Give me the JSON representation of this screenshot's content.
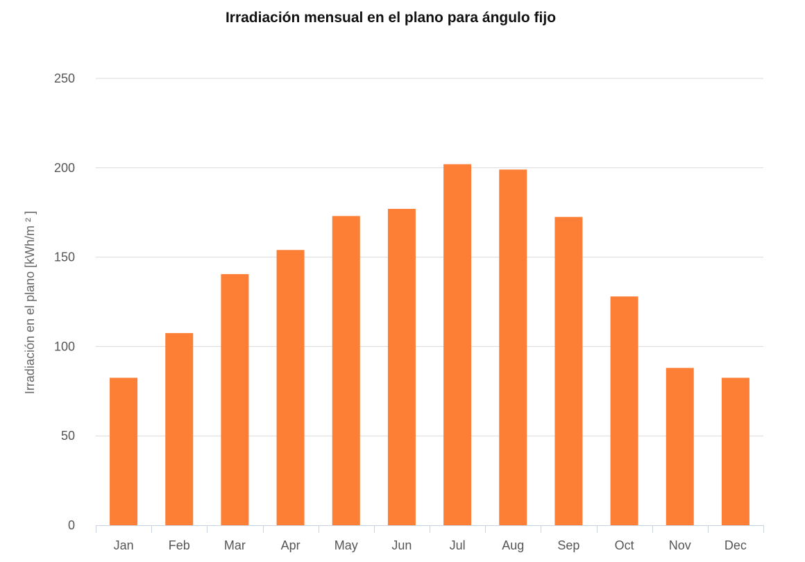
{
  "chart_data": {
    "type": "bar",
    "title": "Irradiación mensual en el plano para ángulo fijo",
    "xlabel": "",
    "ylabel": "Irradiación en el plano [kWh/m ² ]",
    "categories": [
      "Jan",
      "Feb",
      "Mar",
      "Apr",
      "May",
      "Jun",
      "Jul",
      "Aug",
      "Sep",
      "Oct",
      "Nov",
      "Dec"
    ],
    "values": [
      82.5,
      107.5,
      140.5,
      154,
      173,
      177,
      202,
      199,
      172.5,
      128,
      88,
      82.5
    ],
    "ylim": [
      0,
      250
    ],
    "yticks": [
      0,
      50,
      100,
      150,
      200,
      250
    ],
    "grid": true,
    "legend": "none",
    "colors": {
      "bar": "#fd7e35",
      "grid": "#d9d9d9",
      "axis": "#c8d2e0"
    }
  }
}
